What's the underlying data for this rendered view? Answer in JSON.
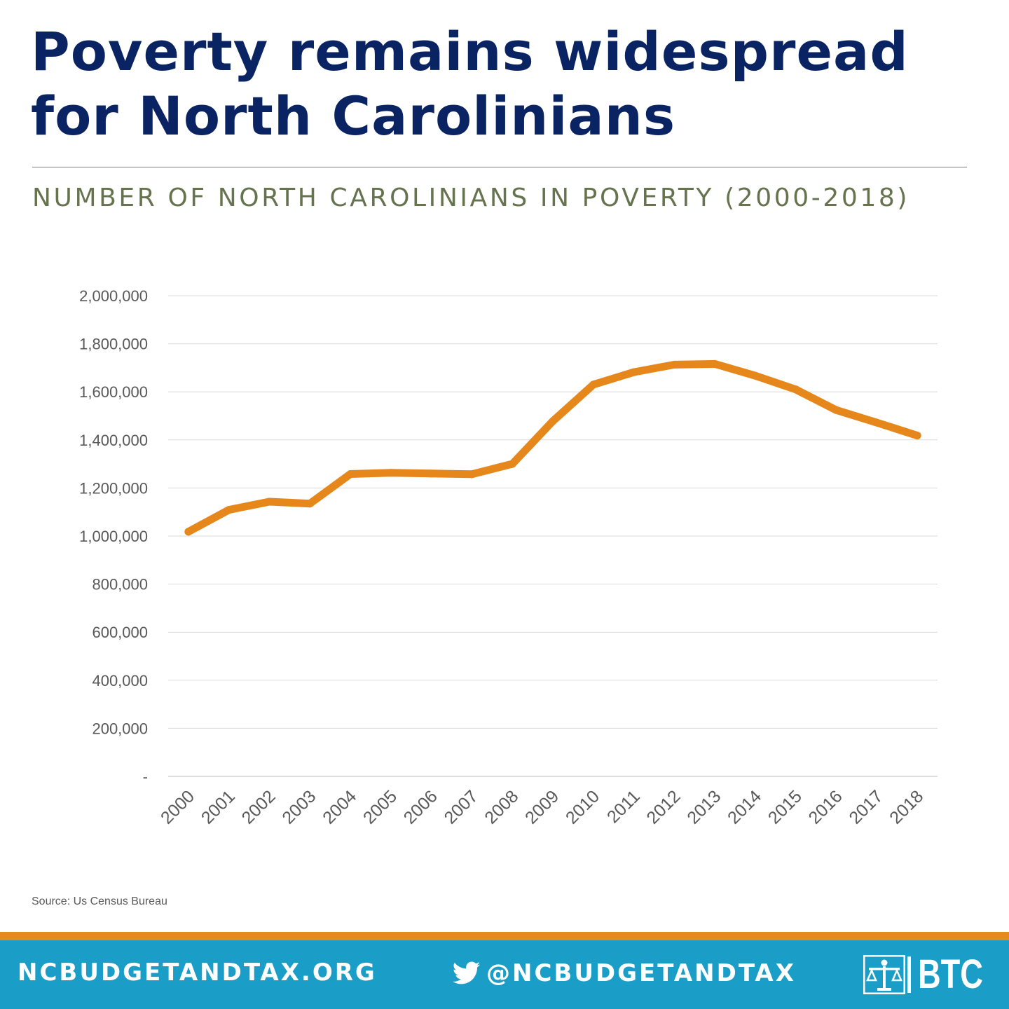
{
  "headline": "Poverty remains widespread for North Carolinians",
  "chart_data": {
    "type": "line",
    "title": "NUMBER OF NORTH CAROLINIANS IN POVERTY (2000-2018)",
    "xlabel": "",
    "ylabel": "",
    "categories": [
      "2000",
      "2001",
      "2002",
      "2003",
      "2004",
      "2005",
      "2006",
      "2007",
      "2008",
      "2009",
      "2010",
      "2011",
      "2012",
      "2013",
      "2014",
      "2015",
      "2016",
      "2017",
      "2018"
    ],
    "series": [
      {
        "values": [
          1018000,
          1109000,
          1143000,
          1135000,
          1258000,
          1263000,
          1260000,
          1257000,
          1300000,
          1478000,
          1630000,
          1682000,
          1713000,
          1716000,
          1667000,
          1610000,
          1524000,
          1472000,
          1418000
        ],
        "color": "#e5871a"
      }
    ],
    "ylim": [
      0,
      2000000
    ],
    "yticks": [
      0,
      200000,
      400000,
      600000,
      800000,
      1000000,
      1200000,
      1400000,
      1600000,
      1800000,
      2000000
    ],
    "ytick_labels": [
      "-",
      "200,000",
      "400,000",
      "600,000",
      "800,000",
      "1,000,000",
      "1,200,000",
      "1,400,000",
      "1,600,000",
      "1,800,000",
      "2,000,000"
    ],
    "grid": true,
    "legend": "none"
  },
  "source": "Source: Us Census Bureau",
  "footer": {
    "site": "NCBUDGETANDTAX.ORG",
    "handle": "@NCBUDGETANDTAX",
    "logo_text": "BTC",
    "twitter_icon": "twitter-bird-icon",
    "logo_icon": "scales-of-justice-icon",
    "colors": {
      "band": "#1a9dc6",
      "accent": "#e38b1b"
    }
  }
}
